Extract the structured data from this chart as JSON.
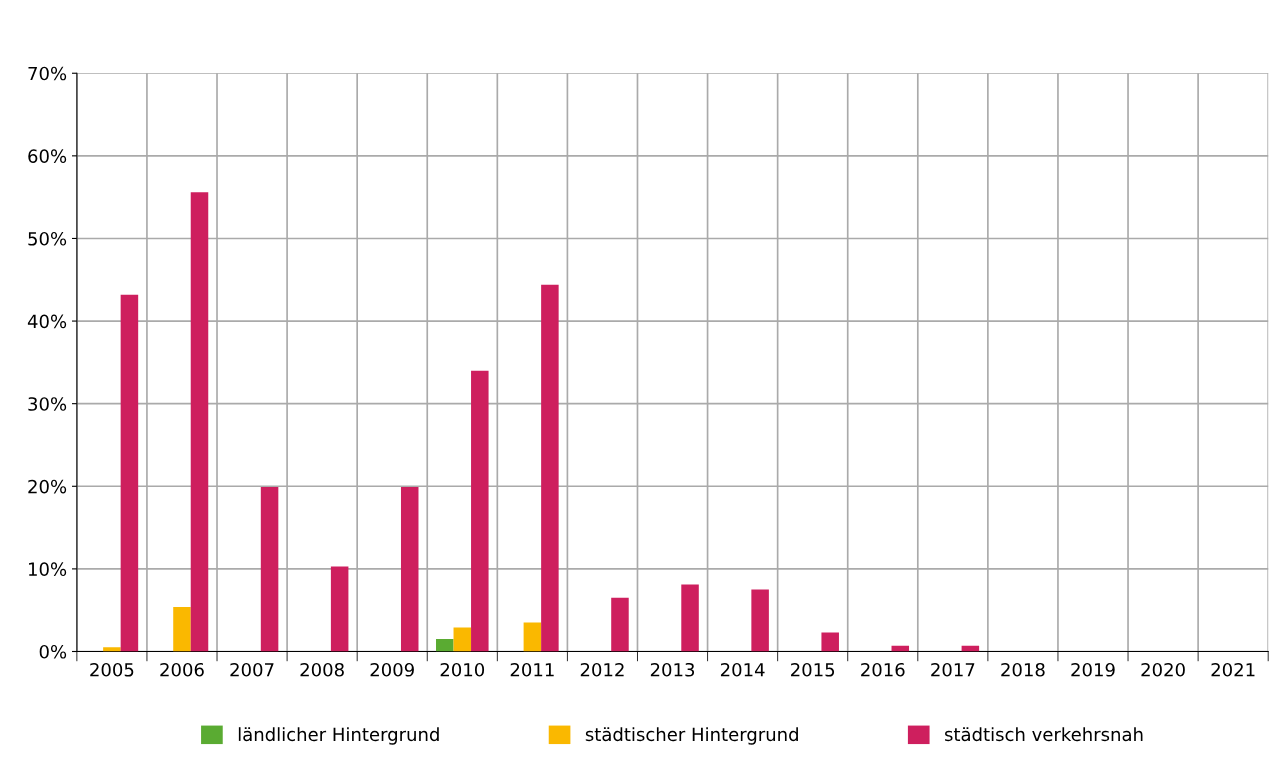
{
  "chart_data": {
    "type": "bar",
    "categories": [
      "2005",
      "2006",
      "2007",
      "2008",
      "2009",
      "2010",
      "2011",
      "2012",
      "2013",
      "2014",
      "2015",
      "2016",
      "2017",
      "2018",
      "2019",
      "2020",
      "2021"
    ],
    "series": [
      {
        "name": "ländlicher Hintergrund",
        "color": "#5aab32",
        "values": [
          null,
          null,
          null,
          null,
          null,
          1.5,
          null,
          null,
          null,
          null,
          null,
          null,
          null,
          null,
          null,
          null,
          null
        ]
      },
      {
        "name": "städtischer Hintergrund",
        "color": "#fab800",
        "values": [
          0.5,
          5.4,
          null,
          null,
          null,
          2.9,
          3.5,
          null,
          null,
          null,
          null,
          null,
          null,
          null,
          null,
          null,
          null
        ]
      },
      {
        "name": "städtisch verkehrsnah",
        "color": "#ce1f5e",
        "values": [
          43.2,
          55.6,
          19.9,
          10.3,
          19.9,
          34.0,
          44.4,
          6.5,
          8.1,
          7.5,
          2.3,
          0.7,
          0.7,
          null,
          null,
          null,
          null
        ]
      }
    ],
    "ylim": [
      0,
      70
    ],
    "yticks": [
      {
        "value": 0,
        "label": "0%"
      },
      {
        "value": 10,
        "label": "10%"
      },
      {
        "value": 20,
        "label": "20%"
      },
      {
        "value": 30,
        "label": "30%"
      },
      {
        "value": 40,
        "label": "40%"
      },
      {
        "value": 50,
        "label": "50%"
      },
      {
        "value": 60,
        "label": "60%"
      },
      {
        "value": 70,
        "label": "70%"
      }
    ],
    "grid": true,
    "legend": "bottom"
  }
}
